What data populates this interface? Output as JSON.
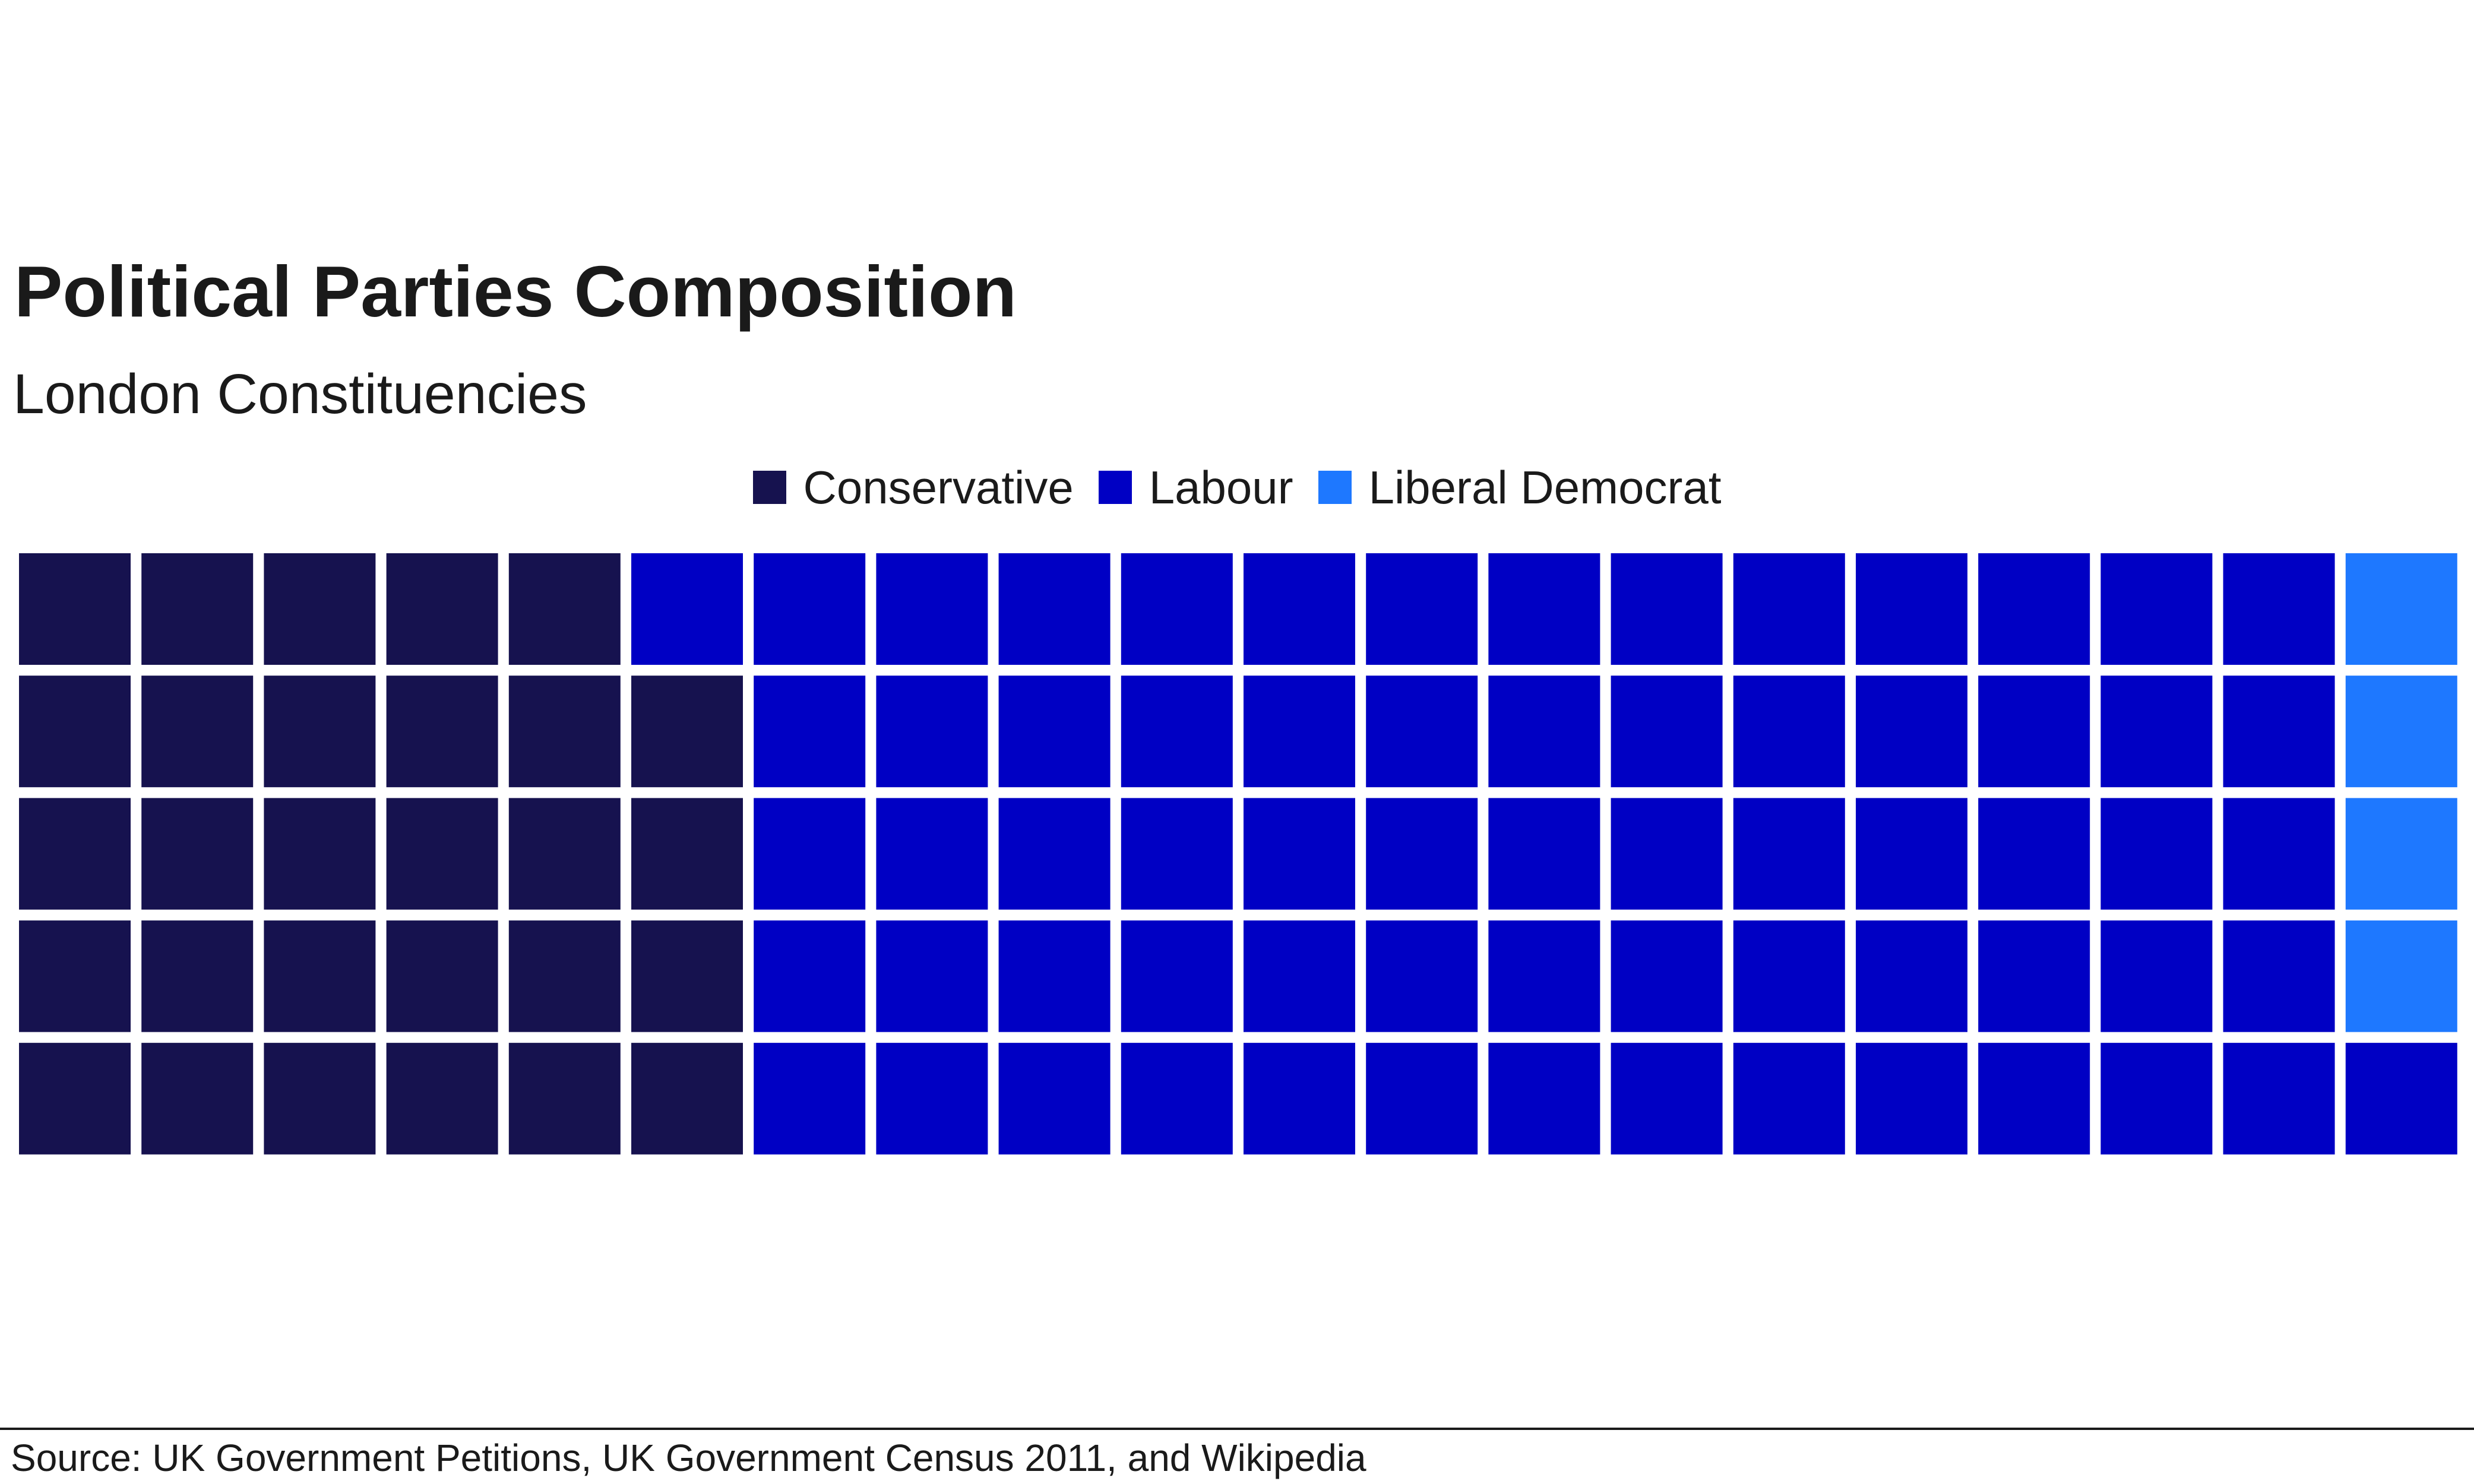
{
  "chart_data": {
    "type": "waffle",
    "title": "Political Parties Composition",
    "subtitle": "London Constituencies",
    "caption": "Source: UK Government Petitions, UK Government Census 2011, and Wikipedia",
    "legend_position": "top",
    "grid": {
      "rows": 5,
      "columns": 20,
      "fill_order": "column-major, bottom-to-top"
    },
    "series": [
      {
        "name": "Conservative",
        "count": 29,
        "color": "#16124f"
      },
      {
        "name": "Labour",
        "count": 67,
        "color": "#0000c4"
      },
      {
        "name": "Liberal Democrat",
        "count": 4,
        "color": "#1e78ff"
      }
    ]
  }
}
